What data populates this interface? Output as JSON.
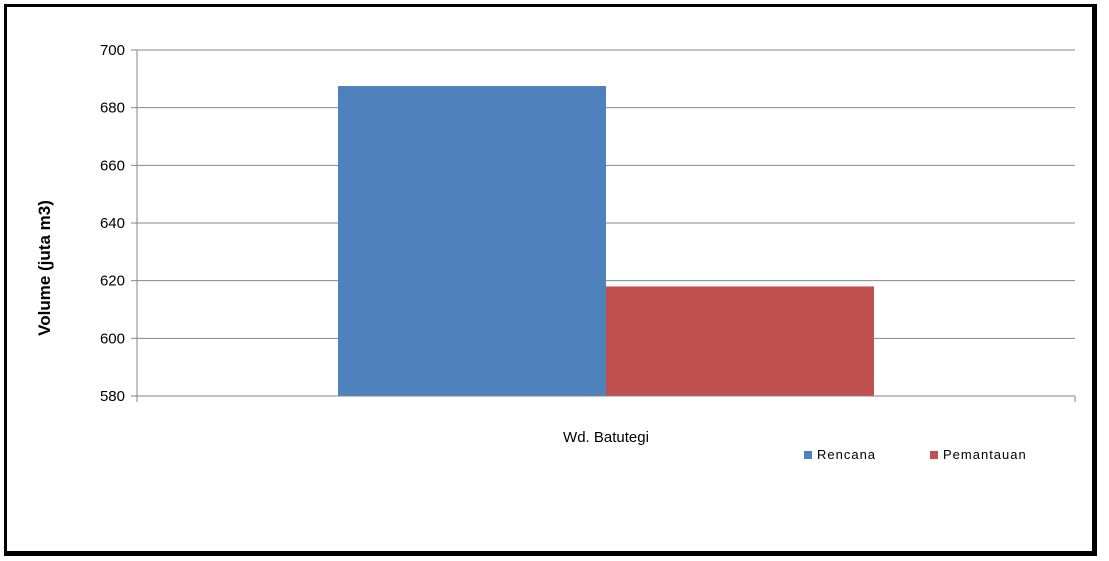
{
  "chart_data": {
    "type": "bar",
    "categories": [
      "Wd. Batutegi"
    ],
    "series": [
      {
        "name": "Rencana",
        "values": [
          687.5
        ],
        "color": "#4F81BD"
      },
      {
        "name": "Pemantauan",
        "values": [
          618
        ],
        "color": "#C0504D"
      }
    ],
    "ylabel": "Volume (juta m3)",
    "ylim": [
      580,
      700
    ],
    "yticks": [
      580,
      600,
      620,
      640,
      660,
      680,
      700
    ],
    "grid": true,
    "legend": "bottom-right"
  }
}
